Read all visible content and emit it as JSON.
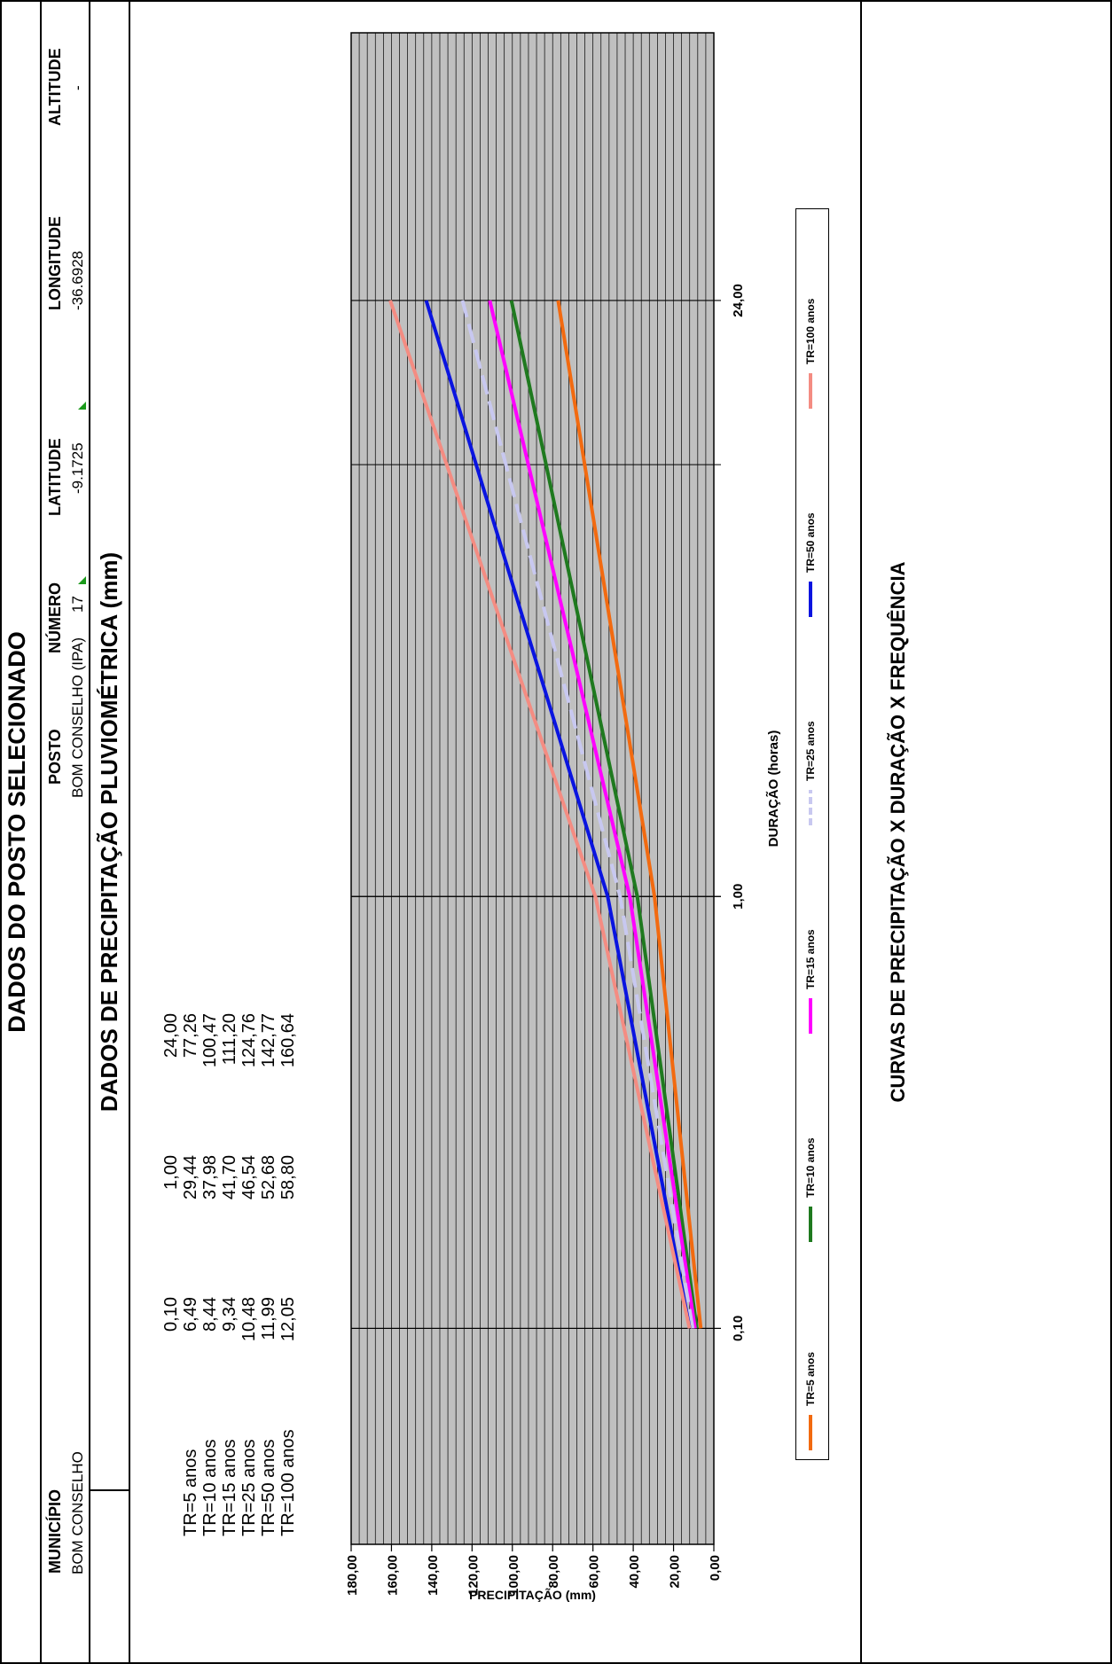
{
  "sheet": {
    "title": "DADOS DO POSTO SELECIONADO",
    "section_title": "DADOS DE PRECIPITAÇÃO PLUVIOMÉTRICA (mm)",
    "footer_title": "CURVAS DE PRECIPITAÇÃO X DURAÇÃO X FREQUÊNCIA"
  },
  "station": {
    "headers": {
      "municipio": "MUNICÍPIO",
      "posto": "POSTO",
      "numero": "NÚMERO",
      "latitude": "LATITUDE",
      "longitude": "LONGITUDE",
      "altitude": "ALTITUDE"
    },
    "values": {
      "municipio": "BOM CONSELHO",
      "posto": "BOM CONSELHO (IPA)",
      "numero": "17",
      "latitude": "-9.1725",
      "longitude": "-36.6928",
      "altitude": "-"
    }
  },
  "table": {
    "durations": [
      "0,10",
      "1,00",
      "24,00"
    ],
    "rows": [
      {
        "label": "TR=5 anos",
        "cells": [
          "6,49",
          "29,44",
          "77,26"
        ]
      },
      {
        "label": "TR=10 anos",
        "cells": [
          "8,44",
          "37,98",
          "100,47"
        ]
      },
      {
        "label": "TR=15 anos",
        "cells": [
          "9,34",
          "41,70",
          "111,20"
        ]
      },
      {
        "label": "TR=25 anos",
        "cells": [
          "10,48",
          "46,54",
          "124,76"
        ]
      },
      {
        "label": "TR=50 anos",
        "cells": [
          "11,99",
          "52,68",
          "142,77"
        ]
      },
      {
        "label": "TR=100 anos",
        "cells": [
          "12,05",
          "58,80",
          "160,64"
        ]
      }
    ]
  },
  "chart_data": {
    "type": "line",
    "x_scale": "log",
    "x": [
      0.1,
      1.0,
      24.0
    ],
    "x_tick_labels": [
      "0,10",
      "1,00",
      "24,00"
    ],
    "xlabel": "DURAÇÃO  (horas)",
    "ylabel": "PRECIPITAÇÃO  (mm)",
    "ylim": [
      0,
      180
    ],
    "y_ticks": [
      0,
      20,
      40,
      60,
      80,
      100,
      120,
      140,
      160,
      180
    ],
    "y_tick_labels": [
      "0,00",
      "20,00",
      "40,00",
      "60,00",
      "80,00",
      "100,00",
      "120,00",
      "140,00",
      "160,00",
      "180,00"
    ],
    "grid": true,
    "legend_position": "bottom",
    "series": [
      {
        "name": "TR=5 anos",
        "color": "#f26a10",
        "values": [
          6.49,
          29.44,
          77.26
        ]
      },
      {
        "name": "TR=10 anos",
        "color": "#1f7a1f",
        "values": [
          8.44,
          37.98,
          100.47
        ]
      },
      {
        "name": "TR=15 anos",
        "color": "#ff00ff",
        "values": [
          9.34,
          41.7,
          111.2
        ]
      },
      {
        "name": "TR=25 anos",
        "color": "#c8c8f0",
        "dashed": true,
        "values": [
          10.48,
          46.54,
          124.76
        ]
      },
      {
        "name": "TR=50 anos",
        "color": "#0a14e0",
        "values": [
          11.99,
          52.68,
          142.77
        ]
      },
      {
        "name": "TR=100 anos",
        "color": "#f48c82",
        "values": [
          12.05,
          58.8,
          160.64
        ]
      }
    ]
  }
}
